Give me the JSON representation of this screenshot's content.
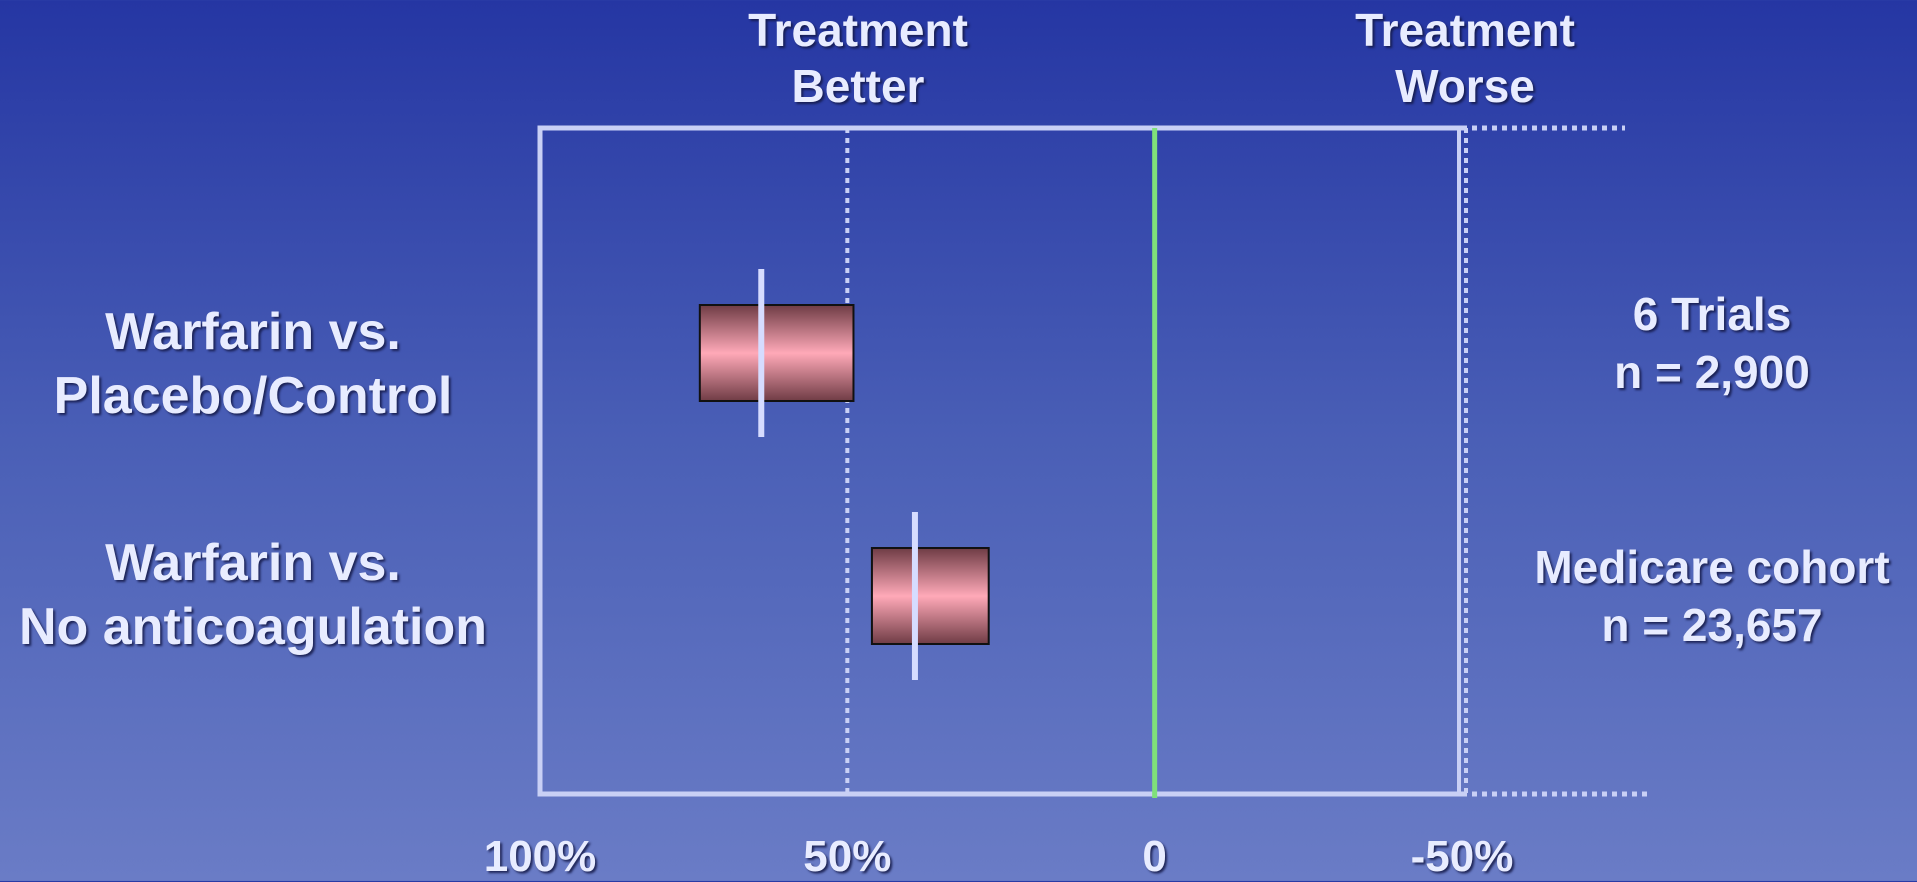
{
  "header": {
    "left": [
      "Treatment",
      "Better"
    ],
    "right": [
      "Treatment",
      "Worse"
    ]
  },
  "rows": [
    {
      "label": [
        "Warfarin vs.",
        "Placebo/Control"
      ],
      "note": [
        "6 Trials",
        "n = 2,900"
      ]
    },
    {
      "label": [
        "Warfarin vs.",
        "No anticoagulation"
      ],
      "note": [
        "Medicare cohort",
        "n = 23,657"
      ]
    }
  ],
  "chart_data": {
    "type": "bar",
    "orientation": "horizontal",
    "x_axis": {
      "range": [
        100,
        -50
      ],
      "reversed": true,
      "ticks": [
        100,
        50,
        0,
        -50
      ],
      "tick_labels": [
        "100%",
        "50%",
        "0",
        "-50%"
      ]
    },
    "series": [
      {
        "category": "Warfarin vs. Placebo/Control",
        "estimate": 64,
        "ci_low": 49,
        "ci_high": 74
      },
      {
        "category": "Warfarin vs. No anticoagulation",
        "estimate": 39,
        "ci_low": 27,
        "ci_high": 46
      }
    ],
    "reference_line": 0,
    "gridlines": [
      50,
      -50
    ]
  },
  "colors": {
    "frame": "#c9d0f5",
    "zero_line": "#7fe07a",
    "bar_center": "#ffa9b8",
    "bar_edge": "#6f3c45",
    "estimate_marker": "#d6dcff"
  }
}
